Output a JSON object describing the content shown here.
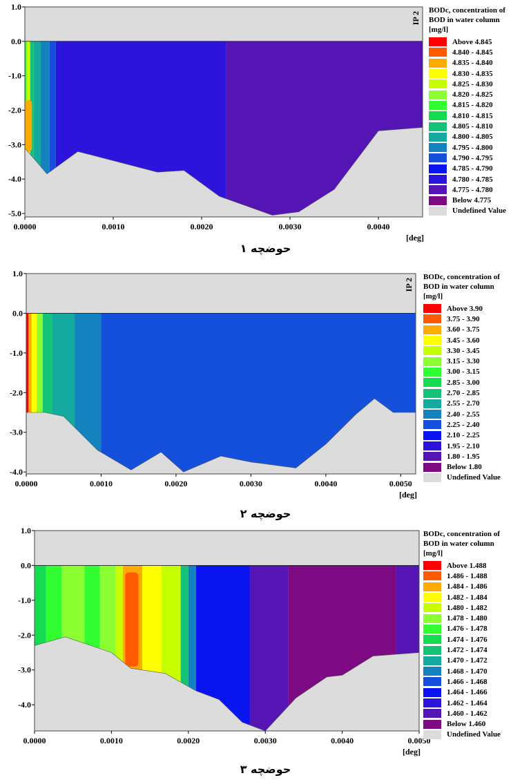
{
  "chart_data": [
    {
      "type": "heatmap",
      "caption": "حوضچه ۱",
      "x_unit": "[deg]",
      "section_label": "IP 2",
      "xlim": [
        0,
        0.0045
      ],
      "ylim": [
        -5.1,
        1.0
      ],
      "x_ticks": [
        "0.0000",
        "0.0010",
        "0.0020",
        "0.0030",
        "0.0040"
      ],
      "x_tick_values": [
        0,
        0.001,
        0.002,
        0.003,
        0.004
      ],
      "y_ticks": [
        "1.0",
        "0.0",
        "-1.0",
        "-2.0",
        "-3.0",
        "-4.0",
        "-5.0"
      ],
      "y_tick_values": [
        1,
        0,
        -1,
        -2,
        -3,
        -4,
        -5
      ],
      "legend": {
        "title": [
          "BODc, concentration of",
          "BOD in water column",
          "[mg/l]"
        ],
        "entries": [
          {
            "label": "Above 4.845",
            "color": "#ff0000"
          },
          {
            "label": "4.840 - 4.845",
            "color": "#ff5a00"
          },
          {
            "label": "4.835 - 4.840",
            "color": "#ffaa00"
          },
          {
            "label": "4.830 - 4.835",
            "color": "#ffff00"
          },
          {
            "label": "4.825 - 4.830",
            "color": "#c8ff00"
          },
          {
            "label": "4.820 - 4.825",
            "color": "#8cff32"
          },
          {
            "label": "4.815 - 4.820",
            "color": "#32ff32"
          },
          {
            "label": "4.810 - 4.815",
            "color": "#14dc50"
          },
          {
            "label": "4.805 - 4.810",
            "color": "#14c378"
          },
          {
            "label": "4.800 - 4.805",
            "color": "#14aaa0"
          },
          {
            "label": "4.795 - 4.800",
            "color": "#1482be"
          },
          {
            "label": "4.790 - 4.795",
            "color": "#1450dc"
          },
          {
            "label": "4.785 - 4.790",
            "color": "#0a14f0"
          },
          {
            "label": "4.780 - 4.785",
            "color": "#2d14dc"
          },
          {
            "label": "4.775 - 4.780",
            "color": "#5514b4"
          },
          {
            "label": "Below 4.775",
            "color": "#7d0a82"
          },
          {
            "label": "Undefined Value",
            "color": "#dcdcdc"
          }
        ]
      },
      "bed_profile": [
        [
          0,
          -3.1
        ],
        [
          0.00025,
          -3.85
        ],
        [
          0.0006,
          -3.2
        ],
        [
          0.0015,
          -3.8
        ],
        [
          0.0018,
          -3.75
        ],
        [
          0.0022,
          -4.5
        ],
        [
          0.0028,
          -5.05
        ],
        [
          0.0031,
          -4.95
        ],
        [
          0.0035,
          -4.3
        ],
        [
          0.004,
          -2.6
        ],
        [
          0.0045,
          -2.5
        ]
      ],
      "zones": [
        {
          "x": [
            0,
            2e-05
          ],
          "color": "#32ff32"
        },
        {
          "x": [
            2e-05,
            6e-05
          ],
          "color": "#c8ff00"
        },
        {
          "x": [
            6e-05,
            0.0001
          ],
          "color": "#14c378"
        },
        {
          "x": [
            0.0001,
            0.00018
          ],
          "color": "#14aaa0"
        },
        {
          "x": [
            0.00018,
            0.00028
          ],
          "color": "#1482be"
        },
        {
          "x": [
            0.00028,
            0.00035
          ],
          "color": "#1450dc"
        },
        {
          "x": [
            0.00035,
            0.00228
          ],
          "color": "#2d14dc"
        },
        {
          "x": [
            0.00228,
            0.0045
          ],
          "color": "#5514b4"
        }
      ],
      "hotspot": {
        "x": [
          0,
          8e-05
        ],
        "y": [
          -3.2,
          -1.7
        ],
        "color": "#ffaa00",
        "core_color": "#ff5a00"
      }
    },
    {
      "type": "heatmap",
      "caption": "حوضچه ۲",
      "x_unit": "[deg]",
      "section_label": "IP 2",
      "xlim": [
        0,
        0.0052
      ],
      "ylim": [
        -4.05,
        1.0
      ],
      "x_ticks": [
        "0.0000",
        "0.0010",
        "0.0020",
        "0.0030",
        "0.0040",
        "0.0050"
      ],
      "x_tick_values": [
        0,
        0.001,
        0.002,
        0.003,
        0.004,
        0.005
      ],
      "y_ticks": [
        "1.0",
        "0.0",
        "-1.0",
        "-2.0",
        "-3.0",
        "-4.0"
      ],
      "y_tick_values": [
        1,
        0,
        -1,
        -2,
        -3,
        -4
      ],
      "legend": {
        "title": [
          "BODc, concentration of",
          "BOD in water column",
          "[mg/l]"
        ],
        "entries": [
          {
            "label": "Above 3.90",
            "color": "#ff0000"
          },
          {
            "label": "3.75 - 3.90",
            "color": "#ff5a00"
          },
          {
            "label": "3.60 - 3.75",
            "color": "#ffaa00"
          },
          {
            "label": "3.45 - 3.60",
            "color": "#ffff00"
          },
          {
            "label": "3.30 - 3.45",
            "color": "#c8ff00"
          },
          {
            "label": "3.15 - 3.30",
            "color": "#8cff32"
          },
          {
            "label": "3.00 - 3.15",
            "color": "#32ff32"
          },
          {
            "label": "2.85 - 3.00",
            "color": "#14dc50"
          },
          {
            "label": "2.70 - 2.85",
            "color": "#14c378"
          },
          {
            "label": "2.55 - 2.70",
            "color": "#14aaa0"
          },
          {
            "label": "2.40 - 2.55",
            "color": "#1482be"
          },
          {
            "label": "2.25 - 2.40",
            "color": "#1450dc"
          },
          {
            "label": "2.10 - 2.25",
            "color": "#0a14f0"
          },
          {
            "label": "1.95 - 2.10",
            "color": "#2d14dc"
          },
          {
            "label": "1.80 - 1.95",
            "color": "#5514b4"
          },
          {
            "label": "Below 1.80",
            "color": "#7d0a82"
          },
          {
            "label": "Undefined Value",
            "color": "#dcdcdc"
          }
        ]
      },
      "bed_profile": [
        [
          0,
          -2.5
        ],
        [
          0.00025,
          -2.5
        ],
        [
          0.0005,
          -2.6
        ],
        [
          0.00095,
          -3.45
        ],
        [
          0.0014,
          -3.95
        ],
        [
          0.0018,
          -3.5
        ],
        [
          0.0021,
          -4.0
        ],
        [
          0.0026,
          -3.6
        ],
        [
          0.003,
          -3.75
        ],
        [
          0.0036,
          -3.9
        ],
        [
          0.004,
          -3.3
        ],
        [
          0.0044,
          -2.55
        ],
        [
          0.00465,
          -2.15
        ],
        [
          0.0049,
          -2.5
        ],
        [
          0.0052,
          -2.5
        ]
      ],
      "zones": [
        {
          "x": [
            0,
            3e-05
          ],
          "color": "#ff0000"
        },
        {
          "x": [
            3e-05,
            7e-05
          ],
          "color": "#ffaa00"
        },
        {
          "x": [
            7e-05,
            0.00014
          ],
          "color": "#ffff00"
        },
        {
          "x": [
            0.00014,
            0.00022
          ],
          "color": "#8cff32"
        },
        {
          "x": [
            0.00022,
            0.00035
          ],
          "color": "#14c378"
        },
        {
          "x": [
            0.00035,
            0.00065
          ],
          "color": "#14aaa0"
        },
        {
          "x": [
            0.00065,
            0.001
          ],
          "color": "#1482be"
        },
        {
          "x": [
            0.001,
            0.0052
          ],
          "color": "#1450dc"
        }
      ]
    },
    {
      "type": "heatmap",
      "caption": "حوضچه ۳",
      "x_unit": "[deg]",
      "section_label": "",
      "xlim": [
        0,
        0.005
      ],
      "ylim": [
        -4.75,
        1.0
      ],
      "x_ticks": [
        "0.0000",
        "0.0010",
        "0.0020",
        "0.0030",
        "0.0040",
        "0.0050"
      ],
      "x_tick_values": [
        0,
        0.001,
        0.002,
        0.003,
        0.004,
        0.005
      ],
      "y_ticks": [
        "1.0",
        "0.0",
        "-1.0",
        "-2.0",
        "-3.0",
        "-4.0"
      ],
      "y_tick_values": [
        1,
        0,
        -1,
        -2,
        -3,
        -4
      ],
      "legend": {
        "title": [
          "BODc, concentration of",
          "BOD in water column",
          "[mg/l]"
        ],
        "entries": [
          {
            "label": "Above 1.488",
            "color": "#ff0000"
          },
          {
            "label": "1.486 - 1.488",
            "color": "#ff5a00"
          },
          {
            "label": "1.484 - 1.486",
            "color": "#ffaa00"
          },
          {
            "label": "1.482 - 1.484",
            "color": "#ffff00"
          },
          {
            "label": "1.480 - 1.482",
            "color": "#c8ff00"
          },
          {
            "label": "1.478 - 1.480",
            "color": "#8cff32"
          },
          {
            "label": "1.476 - 1.478",
            "color": "#32ff32"
          },
          {
            "label": "1.474 - 1.476",
            "color": "#14dc50"
          },
          {
            "label": "1.472 - 1.474",
            "color": "#14c378"
          },
          {
            "label": "1.470 - 1.472",
            "color": "#14aaa0"
          },
          {
            "label": "1.468 - 1.470",
            "color": "#1482be"
          },
          {
            "label": "1.466 - 1.468",
            "color": "#1450dc"
          },
          {
            "label": "1.464 - 1.466",
            "color": "#0a14f0"
          },
          {
            "label": "1.462 - 1.464",
            "color": "#2d14dc"
          },
          {
            "label": "1.460 - 1.462",
            "color": "#5514b4"
          },
          {
            "label": "Below 1.460",
            "color": "#7d0a82"
          },
          {
            "label": "Undefined Value",
            "color": "#dcdcdc"
          }
        ]
      },
      "bed_profile": [
        [
          0,
          -2.3
        ],
        [
          0.0004,
          -2.05
        ],
        [
          0.001,
          -2.5
        ],
        [
          0.00125,
          -2.95
        ],
        [
          0.0017,
          -3.1
        ],
        [
          0.0021,
          -3.6
        ],
        [
          0.0024,
          -3.85
        ],
        [
          0.0027,
          -4.5
        ],
        [
          0.003,
          -4.75
        ],
        [
          0.0034,
          -3.8
        ],
        [
          0.0038,
          -3.2
        ],
        [
          0.004,
          -3.15
        ],
        [
          0.0044,
          -2.6
        ],
        [
          0.005,
          -2.5
        ]
      ],
      "zones": [
        {
          "x": [
            0,
            0.00015
          ],
          "color": "#14dc50"
        },
        {
          "x": [
            0.00015,
            0.00035
          ],
          "color": "#32ff32"
        },
        {
          "x": [
            0.00035,
            0.00065
          ],
          "color": "#8cff32"
        },
        {
          "x": [
            0.00065,
            0.00085
          ],
          "color": "#32ff32"
        },
        {
          "x": [
            0.00085,
            0.00105
          ],
          "color": "#8cff32"
        },
        {
          "x": [
            0.00105,
            0.00115
          ],
          "color": "#c8ff00"
        },
        {
          "x": [
            0.00115,
            0.0014
          ],
          "color": "#ffaa00"
        },
        {
          "x": [
            0.0014,
            0.00165
          ],
          "color": "#ffff00"
        },
        {
          "x": [
            0.00165,
            0.0019
          ],
          "color": "#c8ff00"
        },
        {
          "x": [
            0.0019,
            0.002
          ],
          "color": "#14c378"
        },
        {
          "x": [
            0.002,
            0.0021
          ],
          "color": "#1482be"
        },
        {
          "x": [
            0.0021,
            0.0028
          ],
          "color": "#0a14f0"
        },
        {
          "x": [
            0.0028,
            0.0033
          ],
          "color": "#5514b4"
        },
        {
          "x": [
            0.0033,
            0.0047
          ],
          "color": "#7d0a82"
        },
        {
          "x": [
            0.0047,
            0.005
          ],
          "color": "#5514b4"
        }
      ],
      "hotspot": {
        "x": [
          0.00118,
          0.00135
        ],
        "y": [
          -2.9,
          -0.2
        ],
        "color": "#ff5a00",
        "core_color": "#ff5a00"
      }
    }
  ]
}
